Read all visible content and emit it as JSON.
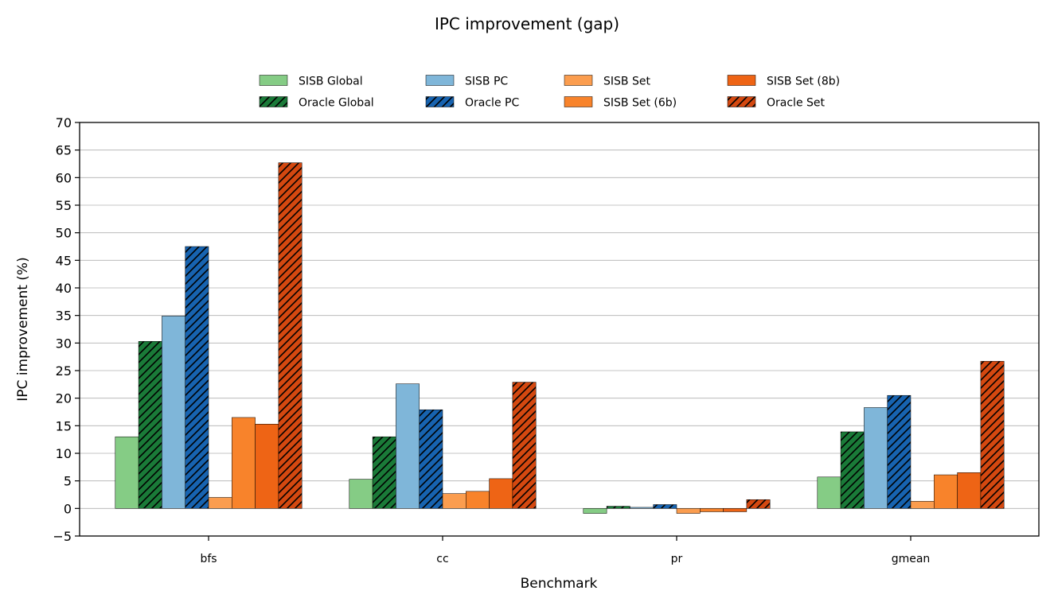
{
  "chart_data": {
    "type": "bar",
    "title": "IPC improvement (gap)",
    "xlabel": "Benchmark",
    "ylabel": "IPC improvement (%)",
    "ylim": [
      -5,
      70
    ],
    "yticks": [
      -5,
      0,
      5,
      10,
      15,
      20,
      25,
      30,
      35,
      40,
      45,
      50,
      55,
      60,
      65,
      70
    ],
    "grid": "y",
    "legend_position": "top",
    "categories": [
      "bfs",
      "cc",
      "pr",
      "gmean"
    ],
    "series": [
      {
        "name": "SISB Global",
        "color": "#85cc85",
        "hatch": false,
        "values": [
          13.0,
          5.3,
          -0.9,
          5.7
        ]
      },
      {
        "name": "Oracle Global",
        "color": "#1a7a38",
        "hatch": true,
        "values": [
          30.3,
          13.0,
          0.4,
          13.9
        ]
      },
      {
        "name": "SISB PC",
        "color": "#7fb6d9",
        "hatch": false,
        "values": [
          34.9,
          22.6,
          0.2,
          18.3
        ]
      },
      {
        "name": "Oracle PC",
        "color": "#1763b0",
        "hatch": true,
        "values": [
          47.5,
          17.9,
          0.7,
          20.5
        ]
      },
      {
        "name": "SISB Set",
        "color": "#fb9d4f",
        "hatch": false,
        "values": [
          2.0,
          2.7,
          -0.9,
          1.3
        ]
      },
      {
        "name": "SISB Set (6b)",
        "color": "#f8832b",
        "hatch": false,
        "values": [
          16.5,
          3.1,
          -0.6,
          6.1
        ]
      },
      {
        "name": "SISB Set (8b)",
        "color": "#ee6415",
        "hatch": false,
        "values": [
          15.3,
          5.4,
          -0.6,
          6.5
        ]
      },
      {
        "name": "Oracle Set",
        "color": "#d44810",
        "hatch": true,
        "values": [
          62.7,
          22.9,
          1.6,
          26.7
        ]
      }
    ]
  }
}
